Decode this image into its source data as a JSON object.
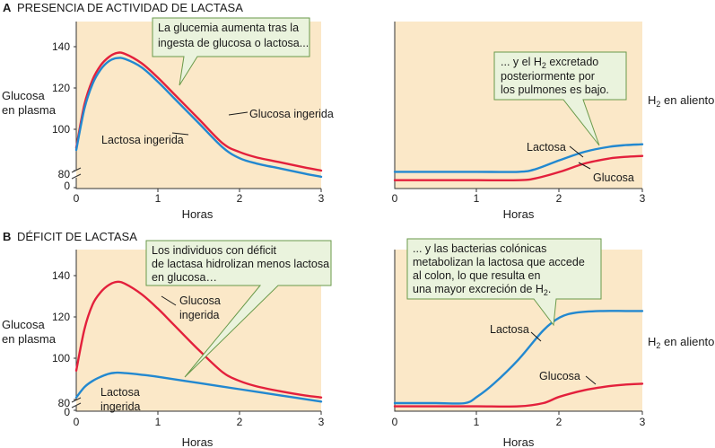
{
  "colors": {
    "glucose": "#e3203c",
    "lactose": "#2288d0",
    "panel_bg": "#fbe8c8",
    "callout_bg": "#eaf3dd",
    "callout_border": "#6a9a4a"
  },
  "sections": [
    {
      "letter": "A",
      "title": "PRESENCIA DE ACTIVIDAD DE LACTASA"
    },
    {
      "letter": "B",
      "title": "DÉFICIT DE LACTASA"
    }
  ],
  "axis_labels": {
    "x": "Horas",
    "y_plasma": [
      "Glucosa",
      "en plasma"
    ],
    "y_h2_main": "H",
    "y_h2_sub": "2",
    "y_h2_rest": " en aliento"
  },
  "callouts": {
    "a_left": [
      "La glucemia aumenta tras la",
      "ingesta de glucosa o lactosa..."
    ],
    "a_right_l1_pre": "... y el H",
    "a_right_l1_sub": "2",
    "a_right_l1_post": " excretado",
    "a_right_rest": [
      "posteriormente por",
      "los pulmones es bajo."
    ],
    "b_left": [
      "Los individuos con déficit",
      "de lactasa hidrolizan menos lactosa",
      "en glucosa…"
    ],
    "b_right_lines": [
      "... y las bacterias colónicas",
      "metabolizan la lactosa que accede",
      "al colon, lo que resulta en"
    ],
    "b_right_last_pre": "una mayor excreción de H",
    "b_right_last_sub": "2",
    "b_right_last_post": "."
  },
  "chart_data": [
    {
      "id": "A-plasma",
      "type": "line",
      "x_ticks": [
        "0",
        "1",
        "2",
        "3"
      ],
      "y_ticks": [
        "0",
        "80",
        "100",
        "120",
        "140"
      ],
      "xlim": [
        0,
        3
      ],
      "ylim": [
        75,
        150
      ],
      "axis_break": true,
      "series": [
        {
          "name": "Glucosa ingerida",
          "color": "#e3203c",
          "x": [
            0,
            0.1,
            0.2,
            0.3,
            0.4,
            0.5,
            0.6,
            0.8,
            1.0,
            1.2,
            1.5,
            1.8,
            2.0,
            2.2,
            2.5,
            2.8,
            3.0
          ],
          "y": [
            91,
            112,
            124,
            131,
            135,
            137,
            136.5,
            132,
            125,
            117,
            105,
            93,
            89,
            86.5,
            84,
            81.5,
            80
          ]
        },
        {
          "name": "Lactosa ingerida",
          "color": "#2288d0",
          "x": [
            0,
            0.1,
            0.2,
            0.3,
            0.4,
            0.5,
            0.6,
            0.8,
            1.0,
            1.2,
            1.5,
            1.8,
            2.0,
            2.2,
            2.5,
            2.8,
            3.0
          ],
          "y": [
            90,
            110,
            122,
            129,
            133,
            134.5,
            134,
            130,
            123,
            115,
            103,
            91,
            86,
            83.5,
            81,
            78.5,
            77
          ]
        }
      ]
    },
    {
      "id": "A-breath",
      "type": "line",
      "x_ticks": [
        "0",
        "1",
        "2",
        "3"
      ],
      "xlim": [
        0,
        3
      ],
      "ylim": [
        0,
        100
      ],
      "series": [
        {
          "name": "Lactosa",
          "color": "#2288d0",
          "x": [
            0,
            0.5,
            1.0,
            1.5,
            1.7,
            2.0,
            2.3,
            2.6,
            2.8,
            3.0
          ],
          "y": [
            10,
            10,
            10,
            10,
            11.5,
            17,
            22,
            25,
            26,
            26.5
          ]
        },
        {
          "name": "Glucosa",
          "color": "#e3203c",
          "x": [
            0,
            0.5,
            1.0,
            1.5,
            1.7,
            2.0,
            2.3,
            2.6,
            2.8,
            3.0
          ],
          "y": [
            5,
            5,
            5,
            5,
            6,
            10,
            15,
            18,
            19,
            19.5
          ]
        }
      ]
    },
    {
      "id": "B-plasma",
      "type": "line",
      "x_ticks": [
        "0",
        "1",
        "2",
        "3"
      ],
      "y_ticks": [
        "0",
        "80",
        "100",
        "120",
        "140"
      ],
      "xlim": [
        0,
        3
      ],
      "ylim": [
        75,
        150
      ],
      "axis_break": true,
      "series": [
        {
          "name": "Glucosa ingerida",
          "color": "#e3203c",
          "x": [
            0,
            0.1,
            0.2,
            0.3,
            0.4,
            0.5,
            0.6,
            0.8,
            1.0,
            1.2,
            1.5,
            1.8,
            2.0,
            2.2,
            2.5,
            2.8,
            3.0
          ],
          "y": [
            94,
            114,
            126,
            132,
            135.5,
            137,
            136,
            131,
            124,
            116,
            104,
            93,
            89,
            86.5,
            84,
            82,
            81
          ]
        },
        {
          "name": "Lactosa ingerida",
          "color": "#2288d0",
          "x": [
            0,
            0.1,
            0.2,
            0.3,
            0.4,
            0.5,
            0.6,
            0.8,
            1.0,
            1.5,
            2.0,
            2.5,
            3.0
          ],
          "y": [
            81,
            86,
            89,
            91,
            92.5,
            93,
            92.8,
            92,
            91,
            88,
            85,
            82,
            79
          ]
        }
      ]
    },
    {
      "id": "B-breath",
      "type": "line",
      "x_ticks": [
        "0",
        "1",
        "2",
        "3"
      ],
      "xlim": [
        0,
        3
      ],
      "ylim": [
        0,
        100
      ],
      "series": [
        {
          "name": "Lactosa",
          "color": "#2288d0",
          "x": [
            0,
            0.5,
            0.85,
            1.0,
            1.2,
            1.5,
            1.8,
            2.0,
            2.2,
            2.5,
            2.8,
            3.0
          ],
          "y": [
            5,
            5,
            5,
            9,
            17,
            32,
            50,
            58,
            61,
            62,
            62,
            62
          ]
        },
        {
          "name": "Glucosa",
          "color": "#e3203c",
          "x": [
            0,
            0.5,
            1.0,
            1.5,
            1.8,
            2.0,
            2.3,
            2.6,
            2.8,
            3.0
          ],
          "y": [
            3,
            3,
            3,
            3,
            5,
            9,
            13,
            15.5,
            16.5,
            17
          ]
        }
      ]
    }
  ]
}
